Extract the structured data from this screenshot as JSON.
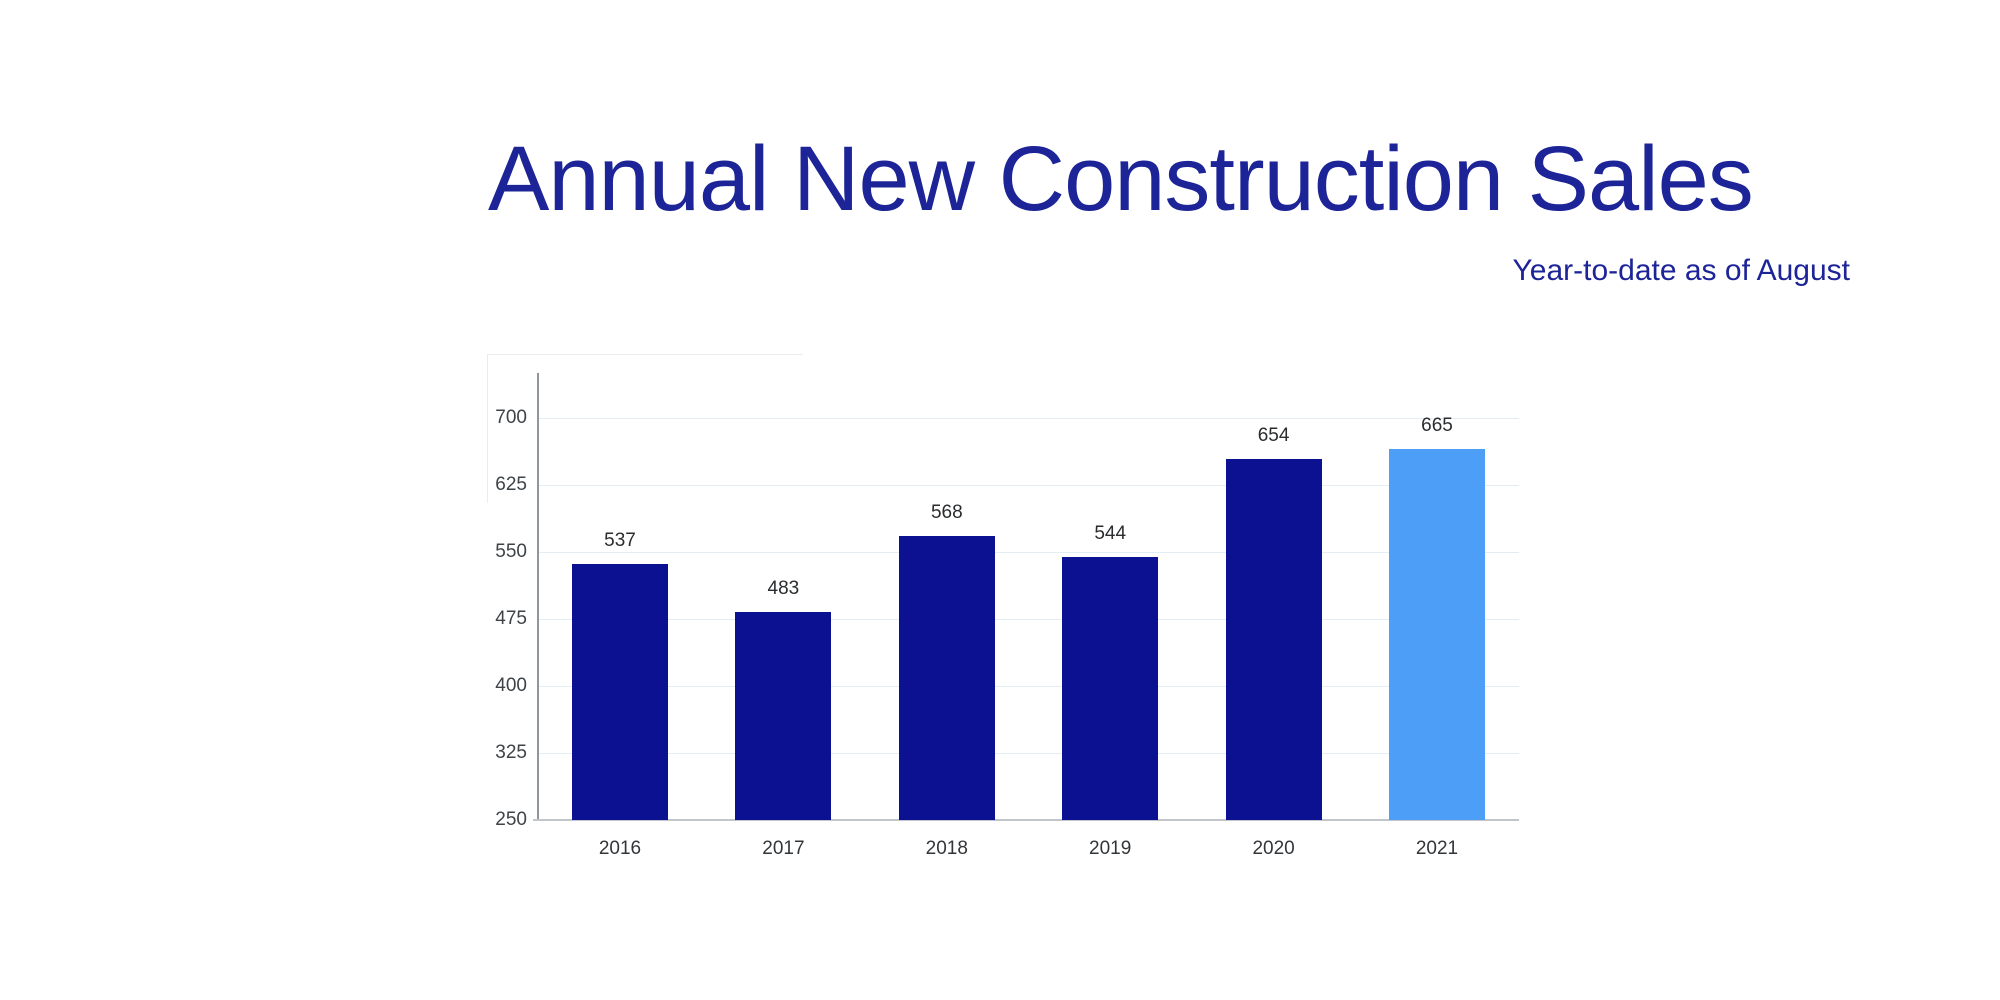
{
  "header": {
    "title": "Annual New Construction Sales",
    "subtitle": "Year-to-date as of August"
  },
  "chart_data": {
    "type": "bar",
    "title": "Annual New Construction Sales",
    "subtitle": "Year-to-date as of August",
    "categories": [
      "2016",
      "2017",
      "2018",
      "2019",
      "2020",
      "2021"
    ],
    "values": [
      537,
      483,
      568,
      544,
      654,
      665
    ],
    "value_labels": [
      "537",
      "483",
      "568",
      "544",
      "654",
      "665"
    ],
    "bar_colors": [
      "#0b1191",
      "#0b1191",
      "#0b1191",
      "#0b1191",
      "#0b1191",
      "#4d9ef6"
    ],
    "highlight_index": 5,
    "yticks": [
      "250",
      "325",
      "400",
      "475",
      "550",
      "625",
      "700"
    ],
    "ylim": [
      250,
      700
    ],
    "grid": true,
    "legend": false,
    "xlabel": "",
    "ylabel": "",
    "colors": {
      "title_text": "#1c2497",
      "bar_default": "#0b1191",
      "bar_highlight": "#4d9ef6",
      "gridline": "#e3edf5",
      "y_axis_line": "#8f969c",
      "x_axis_line": "#c2c6ca",
      "tick_text": "#3e4347",
      "value_text": "#2a2c2e"
    }
  }
}
